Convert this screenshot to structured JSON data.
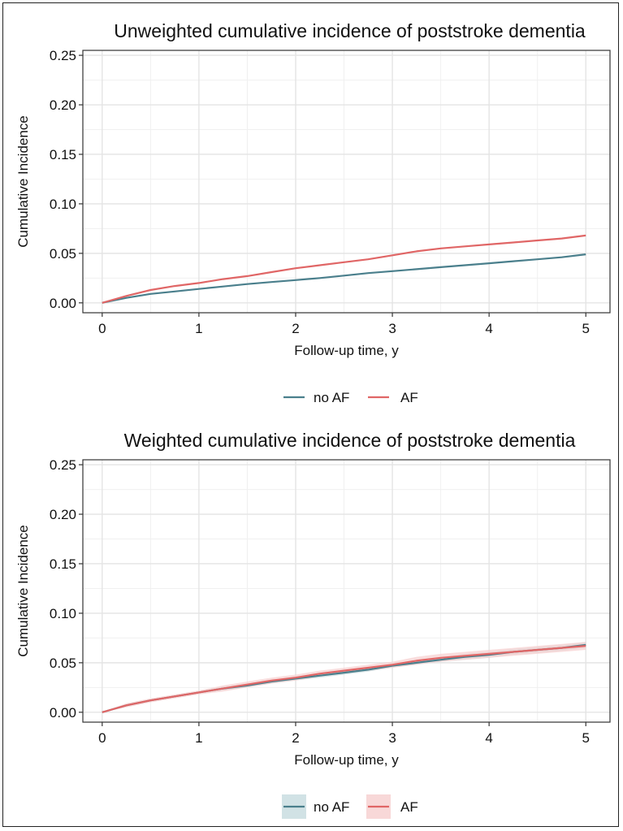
{
  "chart_data": [
    {
      "type": "line",
      "title": "Unweighted cumulative incidence of poststroke dementia",
      "xlabel": "Follow-up time, y",
      "ylabel": "Cumulative Incidence",
      "xlim": [
        -0.2,
        5.25
      ],
      "ylim": [
        -0.01,
        0.255
      ],
      "xticks": [
        0,
        1,
        2,
        3,
        4,
        5
      ],
      "xtick_labels": [
        "0",
        "1",
        "2",
        "3",
        "4",
        "5"
      ],
      "yticks": [
        0,
        0.05,
        0.1,
        0.15,
        0.2,
        0.25
      ],
      "ytick_labels": [
        "0.00",
        "0.05",
        "0.10",
        "0.15",
        "0.20",
        "0.25"
      ],
      "grid": true,
      "legend_position": "bottom",
      "confidence_band": false,
      "series": [
        {
          "name": "no AF",
          "color": "#4a7f8c",
          "x": [
            0,
            0.25,
            0.5,
            0.75,
            1,
            1.25,
            1.5,
            1.75,
            2,
            2.25,
            2.5,
            2.75,
            3,
            3.25,
            3.5,
            3.75,
            4,
            4.25,
            4.5,
            4.75,
            5
          ],
          "y": [
            0,
            0.005,
            0.009,
            0.0115,
            0.014,
            0.0165,
            0.019,
            0.021,
            0.023,
            0.025,
            0.0275,
            0.03,
            0.032,
            0.034,
            0.036,
            0.038,
            0.04,
            0.042,
            0.044,
            0.046,
            0.049
          ]
        },
        {
          "name": "AF",
          "color": "#e06666",
          "x": [
            0,
            0.25,
            0.5,
            0.75,
            1,
            1.25,
            1.5,
            1.75,
            2,
            2.25,
            2.5,
            2.75,
            3,
            3.25,
            3.5,
            3.75,
            4,
            4.25,
            4.5,
            4.75,
            5
          ],
          "y": [
            0,
            0.007,
            0.013,
            0.017,
            0.02,
            0.024,
            0.027,
            0.031,
            0.035,
            0.038,
            0.041,
            0.044,
            0.048,
            0.052,
            0.055,
            0.057,
            0.059,
            0.061,
            0.063,
            0.065,
            0.068
          ]
        }
      ]
    },
    {
      "type": "line",
      "title": "Weighted cumulative incidence of poststroke dementia",
      "xlabel": "Follow-up time, y",
      "ylabel": "Cumulative Incidence",
      "xlim": [
        -0.2,
        5.25
      ],
      "ylim": [
        -0.01,
        0.255
      ],
      "xticks": [
        0,
        1,
        2,
        3,
        4,
        5
      ],
      "xtick_labels": [
        "0",
        "1",
        "2",
        "3",
        "4",
        "5"
      ],
      "yticks": [
        0,
        0.05,
        0.1,
        0.15,
        0.2,
        0.25
      ],
      "ytick_labels": [
        "0.00",
        "0.05",
        "0.10",
        "0.15",
        "0.20",
        "0.25"
      ],
      "grid": true,
      "legend_position": "bottom",
      "confidence_band": true,
      "series": [
        {
          "name": "no AF",
          "color": "#4a7f8c",
          "band_color": "#c9dde0",
          "x": [
            0,
            0.25,
            0.5,
            0.75,
            1,
            1.25,
            1.5,
            1.75,
            2,
            2.25,
            2.5,
            2.75,
            3,
            3.25,
            3.5,
            3.75,
            4,
            4.25,
            4.5,
            4.75,
            5
          ],
          "y": [
            0,
            0.007,
            0.012,
            0.016,
            0.02,
            0.024,
            0.027,
            0.031,
            0.034,
            0.037,
            0.04,
            0.043,
            0.047,
            0.05,
            0.053,
            0.056,
            0.058,
            0.061,
            0.063,
            0.065,
            0.068
          ],
          "lower": [
            0,
            0.006,
            0.011,
            0.015,
            0.019,
            0.022,
            0.025,
            0.029,
            0.032,
            0.035,
            0.038,
            0.041,
            0.045,
            0.048,
            0.051,
            0.053,
            0.055,
            0.058,
            0.06,
            0.062,
            0.065
          ],
          "upper": [
            0,
            0.008,
            0.013,
            0.017,
            0.021,
            0.026,
            0.029,
            0.033,
            0.036,
            0.039,
            0.042,
            0.045,
            0.049,
            0.052,
            0.055,
            0.059,
            0.061,
            0.064,
            0.066,
            0.068,
            0.071
          ]
        },
        {
          "name": "AF",
          "color": "#e06666",
          "band_color": "#f7d1d1",
          "x": [
            0,
            0.25,
            0.5,
            0.75,
            1,
            1.25,
            1.5,
            1.75,
            2,
            2.25,
            2.5,
            2.75,
            3,
            3.25,
            3.5,
            3.75,
            4,
            4.25,
            4.5,
            4.75,
            5
          ],
          "y": [
            0,
            0.007,
            0.012,
            0.016,
            0.02,
            0.024,
            0.028,
            0.032,
            0.035,
            0.039,
            0.042,
            0.045,
            0.048,
            0.052,
            0.055,
            0.057,
            0.059,
            0.061,
            0.063,
            0.065,
            0.067
          ],
          "lower": [
            0,
            0.005,
            0.01,
            0.014,
            0.018,
            0.021,
            0.025,
            0.029,
            0.032,
            0.036,
            0.039,
            0.042,
            0.045,
            0.048,
            0.051,
            0.053,
            0.055,
            0.057,
            0.059,
            0.061,
            0.063
          ],
          "upper": [
            0,
            0.009,
            0.014,
            0.018,
            0.022,
            0.027,
            0.031,
            0.035,
            0.038,
            0.042,
            0.045,
            0.048,
            0.051,
            0.056,
            0.059,
            0.061,
            0.063,
            0.065,
            0.067,
            0.069,
            0.071
          ]
        }
      ]
    }
  ]
}
